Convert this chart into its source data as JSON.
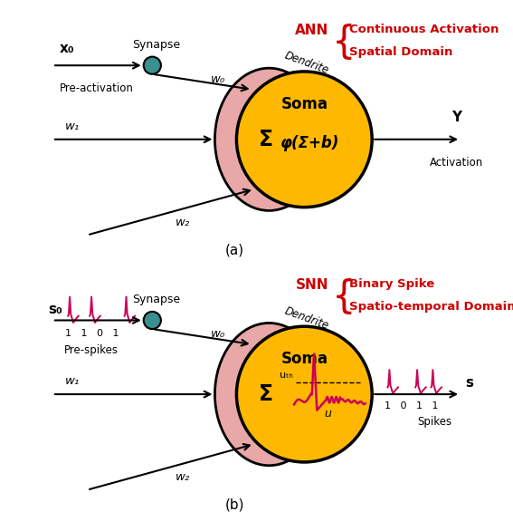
{
  "fig_width": 5.67,
  "fig_height": 5.86,
  "dpi": 100,
  "background": "#ffffff",
  "soma_color": "#FFB800",
  "dendrite_color": "#E8A8A8",
  "synapse_color": "#3A8F8F",
  "ann_color": "#CC0000",
  "spike_color": "#CC0055",
  "panel_a_label": "(a)",
  "panel_b_label": "(b)",
  "ann_label": "ANN",
  "snn_label": "SNN",
  "ann_line1": "Continuous Activation",
  "ann_line2": "Spatial Domain",
  "snn_line1": "Binary Spike",
  "snn_line2": "Spatio-temporal Domain",
  "soma_label": "Soma",
  "dendrite_label": "Dendrite",
  "synapse_label": "Synapse",
  "w0_label": "w₀",
  "w1_label": "w₁",
  "w2_label": "w₂",
  "x0_label": "x₀",
  "s0_label": "s₀",
  "pre_activation_label": "Pre-activation",
  "pre_spikes_label": "Pre-spikes",
  "y_label": "Y",
  "activation_label": "Activation",
  "spikes_label": "Spikes",
  "sum_label": "Σ",
  "phi_label": "φ(Σ+b)",
  "u_label": "u",
  "s_label": "s",
  "bits_b_in": "1  1  0  1",
  "bits_b_out": "1  0  1  1"
}
